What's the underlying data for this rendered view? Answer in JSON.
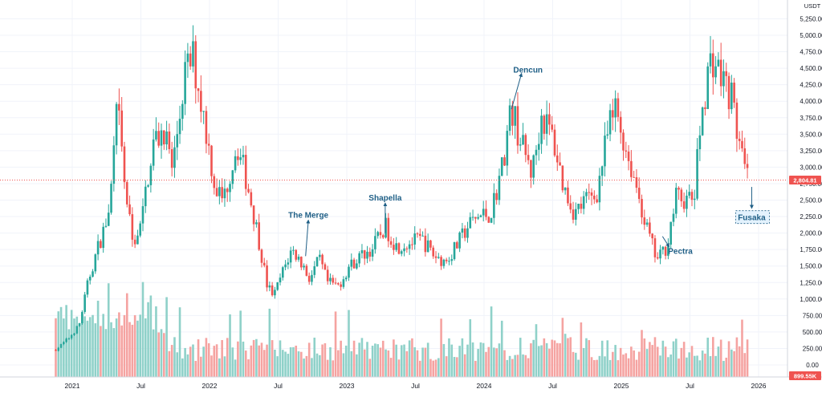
{
  "chart_data": {
    "type": "candlestick",
    "y_unit": "USDT",
    "ylim": [
      -100,
      5400
    ],
    "y_ticks": [
      "5,250.00",
      "5,000.00",
      "4,750.00",
      "4,500.00",
      "4,250.00",
      "4,000.00",
      "3,750.00",
      "3,500.00",
      "3,250.00",
      "3,000.00",
      "2,750.00",
      "2,500.00",
      "2,250.00",
      "2,000.00",
      "1,750.00",
      "1,500.00",
      "1,250.00",
      "1,000.00",
      "750.00",
      "500.00",
      "250.00",
      "0.00"
    ],
    "x_ticks": [
      "2021",
      "Jul",
      "2022",
      "Jul",
      "2023",
      "Jul",
      "2024",
      "Jul",
      "2025",
      "Jul",
      "2026"
    ],
    "last_price": "2,804.81",
    "last_volume": "899.55K",
    "colors": {
      "up": "#26a69a",
      "down": "#ef5350",
      "vol_up": "#8fd1c9",
      "vol_down": "#f5a3a1",
      "price_line": "#ef5350",
      "annotation": "#1f5f86"
    },
    "price_path": [
      [
        2020.88,
        230
      ],
      [
        2020.98,
        420
      ],
      [
        2021.05,
        600
      ],
      [
        2021.12,
        1300
      ],
      [
        2021.19,
        1800
      ],
      [
        2021.27,
        2300
      ],
      [
        2021.33,
        3950
      ],
      [
        2021.38,
        2750
      ],
      [
        2021.44,
        1850
      ],
      [
        2021.5,
        2100
      ],
      [
        2021.58,
        3300
      ],
      [
        2021.67,
        3600
      ],
      [
        2021.73,
        2950
      ],
      [
        2021.82,
        4400
      ],
      [
        2021.88,
        4650
      ],
      [
        2021.96,
        3750
      ],
      [
        2022.04,
        2700
      ],
      [
        2022.1,
        2500
      ],
      [
        2022.2,
        3350
      ],
      [
        2022.27,
        2800
      ],
      [
        2022.35,
        2000
      ],
      [
        2022.42,
        1200
      ],
      [
        2022.47,
        1050
      ],
      [
        2022.53,
        1400
      ],
      [
        2022.6,
        1750
      ],
      [
        2022.67,
        1550
      ],
      [
        2022.73,
        1300
      ],
      [
        2022.8,
        1600
      ],
      [
        2022.86,
        1250
      ],
      [
        2022.94,
        1200
      ],
      [
        2023.02,
        1500
      ],
      [
        2023.1,
        1650
      ],
      [
        2023.18,
        1750
      ],
      [
        2023.28,
        2100
      ],
      [
        2023.36,
        1800
      ],
      [
        2023.45,
        1850
      ],
      [
        2023.55,
        1900
      ],
      [
        2023.64,
        1650
      ],
      [
        2023.72,
        1570
      ],
      [
        2023.8,
        1800
      ],
      [
        2023.88,
        2100
      ],
      [
        2023.96,
        2250
      ],
      [
        2024.05,
        2300
      ],
      [
        2024.13,
        3000
      ],
      [
        2024.2,
        3900
      ],
      [
        2024.28,
        3300
      ],
      [
        2024.35,
        2900
      ],
      [
        2024.42,
        3800
      ],
      [
        2024.5,
        3450
      ],
      [
        2024.58,
        2700
      ],
      [
        2024.66,
        2300
      ],
      [
        2024.74,
        2500
      ],
      [
        2024.82,
        2600
      ],
      [
        2024.9,
        3500
      ],
      [
        2024.96,
        3900
      ],
      [
        2025.03,
        3300
      ],
      [
        2025.1,
        2800
      ],
      [
        2025.18,
        2100
      ],
      [
        2025.26,
        1580
      ],
      [
        2025.33,
        1800
      ],
      [
        2025.4,
        2550
      ],
      [
        2025.47,
        2500
      ],
      [
        2025.53,
        2500
      ],
      [
        2025.58,
        3750
      ],
      [
        2025.62,
        4300
      ],
      [
        2025.66,
        4700
      ],
      [
        2025.72,
        4400
      ],
      [
        2025.8,
        4100
      ],
      [
        2025.88,
        3100
      ],
      [
        2025.92,
        2800
      ]
    ],
    "annotations": [
      {
        "label": "The Merge",
        "x": 2022.72,
        "y": 2270
      },
      {
        "label": "Shapella",
        "x": 2023.28,
        "y": 2530
      },
      {
        "label": "Dencun",
        "x": 2024.32,
        "y": 4470
      },
      {
        "label": "Pectra",
        "x": 2025.43,
        "y": 1720
      },
      {
        "label": "Fusaka",
        "x": 2025.95,
        "y": 2230
      }
    ]
  }
}
